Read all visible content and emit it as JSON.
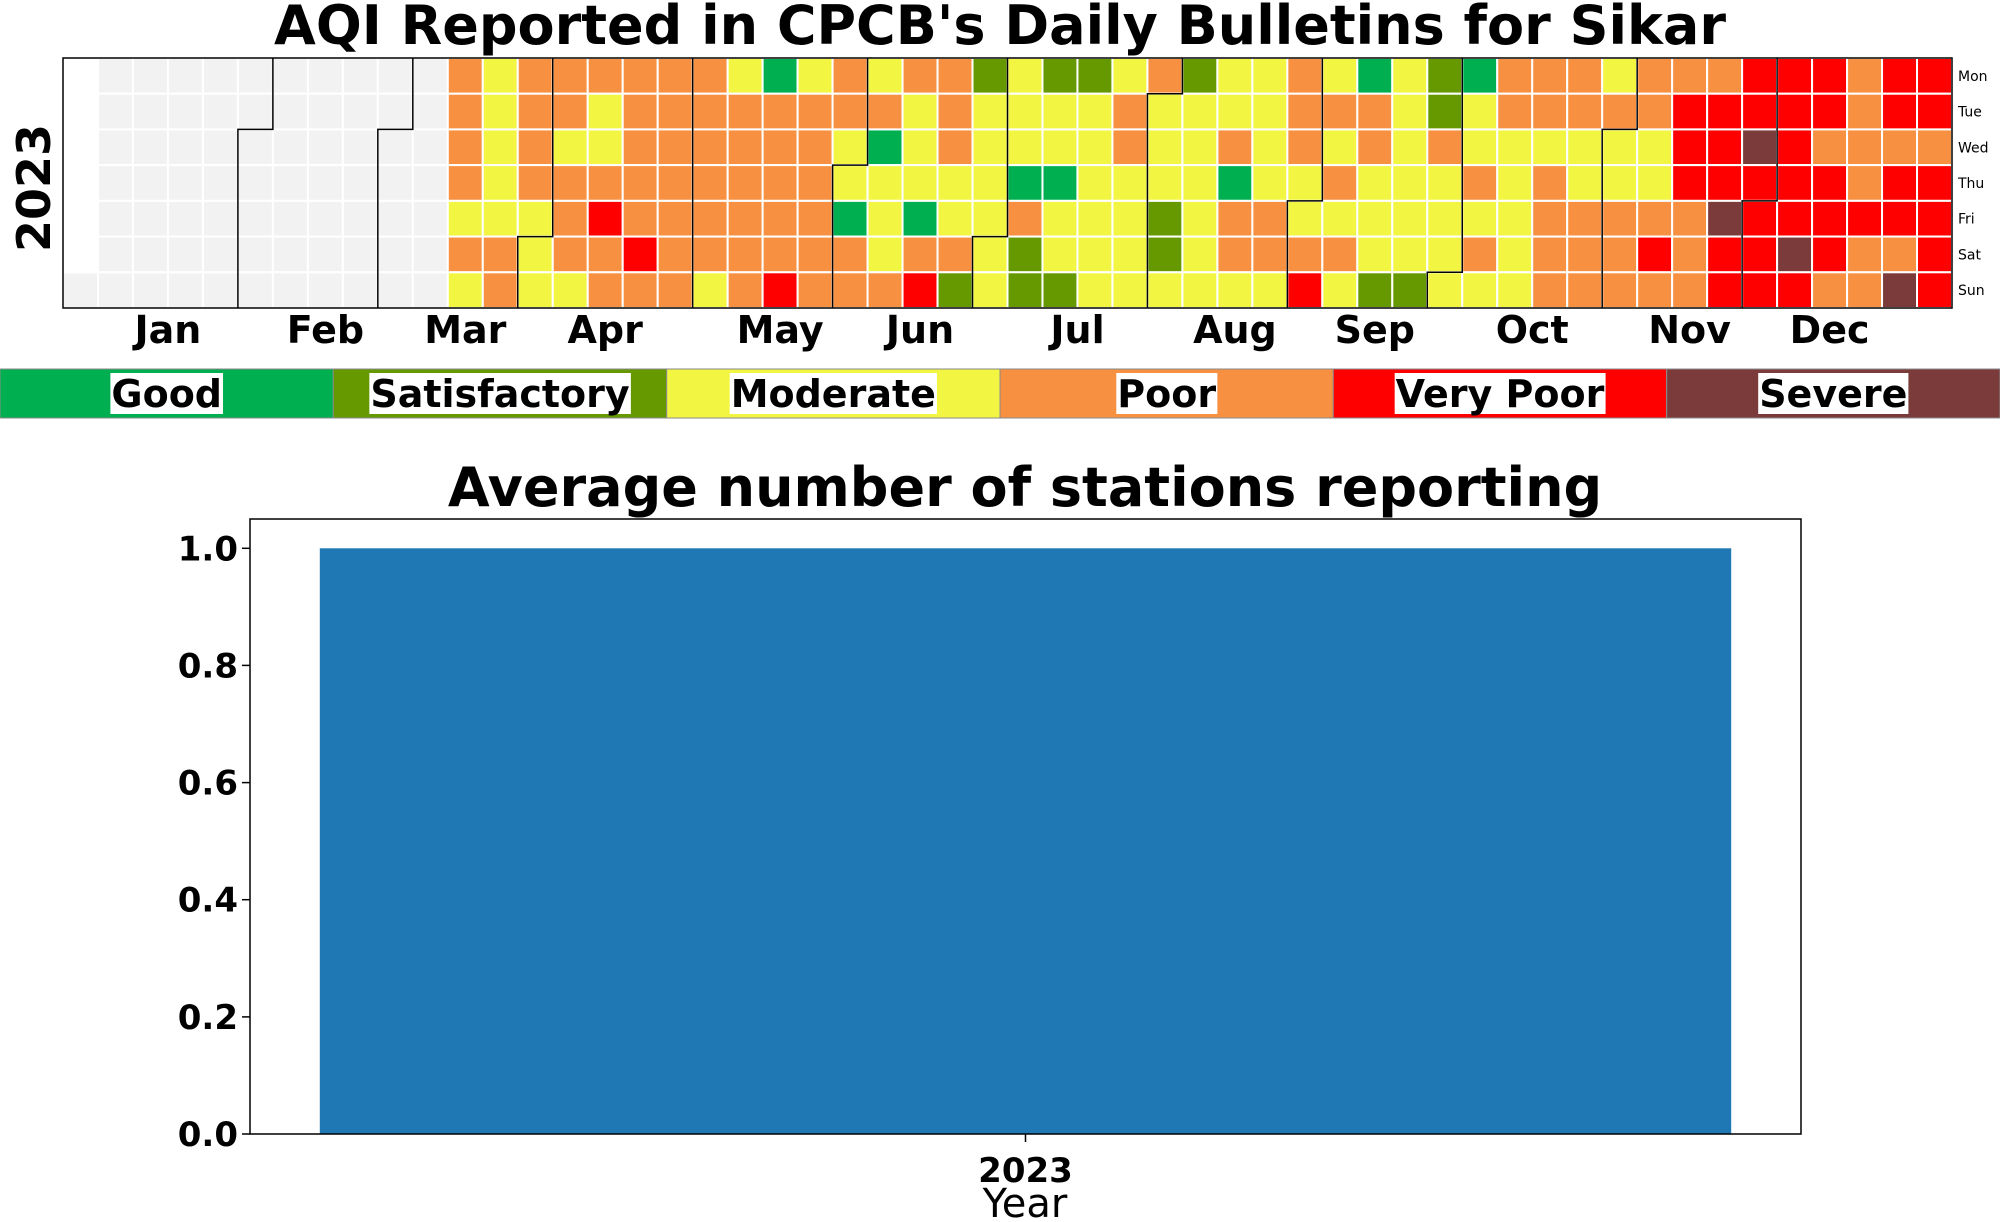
{
  "colors": {
    "no_data": "#f2f2f2",
    "good": "#00b050",
    "satisfactory": "#669900",
    "moderate": "#f2f542",
    "poor": "#f79040",
    "very_poor": "#ff0000",
    "severe": "#7b3b3b",
    "bar": "#1f77b4"
  },
  "chart_data": [
    {
      "type": "heatmap",
      "title": "AQI Reported in CPCB's Daily Bulletins for Sikar",
      "year_label": "2023",
      "months": [
        "Jan",
        "Feb",
        "Mar",
        "Apr",
        "May",
        "Jun",
        "Jul",
        "Aug",
        "Sep",
        "Oct",
        "Nov",
        "Dec"
      ],
      "weekdays": [
        "Mon",
        "Tue",
        "Wed",
        "Thu",
        "Fri",
        "Sat",
        "Sun"
      ],
      "legend": [
        {
          "label": "Good",
          "key": "G"
        },
        {
          "label": "Satisfactory",
          "key": "S"
        },
        {
          "label": "Moderate",
          "key": "M"
        },
        {
          "label": "Poor",
          "key": "P"
        },
        {
          "label": "Very Poor",
          "key": "V"
        },
        {
          "label": "Severe",
          "key": "X"
        }
      ],
      "category_codes": {
        "N": "no data",
        "G": "Good",
        "S": "Satisfactory",
        "M": "Moderate",
        "P": "Poor",
        "V": "Very Poor",
        "X": "Severe"
      },
      "weeks_mon_to_sun": [
        "......N",
        "NNNNNNN",
        "NNNNNNN",
        "NNNNNNN",
        "NNNNNNN",
        "NNNNNNN",
        "NNNNNNN",
        "NNNNNNN",
        "NNNNNNN",
        "NNNNNNN",
        "NNNNNNN",
        "PPPPMPM",
        "MMMMMPP",
        "PPPPMMM",
        "PPMPPPM",
        "PMMPVPP",
        "PPPPPVP",
        "PPPPPPP",
        "PPPPPPM",
        "MPPPPPP",
        "GPPPPPV",
        "MPPPPPP",
        "PPMMGPP",
        "MPGMMMP",
        "PMMMGPV",
        "PPPMMPS",
        "SMMMMMM",
        "MMMGPSS",
        "SMMGMMS",
        "SMMMMMM",
        "MPPMMMM",
        "PMMMSSM",
        "SMMMMMM",
        "MMPGPPM",
        "MMMMPPM",
        "PPPMMPV",
        "MPMPMPM",
        "GPPMMMS",
        "MMMMMMS",
        "SSPMMMM",
        "GMMPMPM",
        "PPMMMMM",
        "PPMPPPP",
        "PPMMPPP",
        "MPMMPPP",
        "PPMMPVP",
        "PVVVPPP",
        "PVVVXVV",
        "VVXVVVV",
        "VVVVVXV",
        "VVPVVVP",
        "PPPPVPP",
        "VVPVVPX",
        "VVPVVVV"
      ]
    },
    {
      "type": "bar",
      "title": "Average number of stations reporting",
      "categories": [
        "2023"
      ],
      "values": [
        1.0
      ],
      "xlabel": "Year",
      "ylabel": "",
      "ylim": [
        0,
        1.05
      ],
      "yticks": [
        "0.0",
        "0.2",
        "0.4",
        "0.6",
        "0.8",
        "1.0"
      ],
      "grid": false
    }
  ]
}
